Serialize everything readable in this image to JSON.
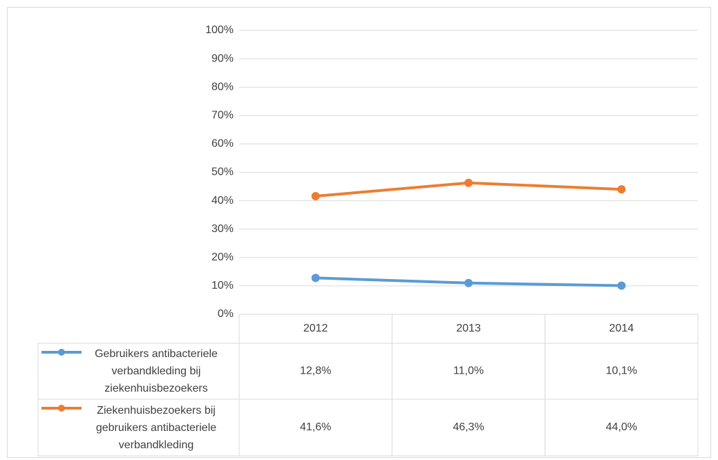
{
  "chart_data": {
    "type": "line",
    "categories": [
      "2012",
      "2013",
      "2014"
    ],
    "series": [
      {
        "name": "Gebruikers antibacteriele verbandkleding bij ziekenhuisbezoekers",
        "color": "#5b9bd5",
        "values": [
          12.8,
          11.0,
          10.1
        ],
        "value_labels": [
          "12,8%",
          "11,0%",
          "10,1%"
        ]
      },
      {
        "name": "Ziekenhuisbezoekers bij gebruikers antibacteriele verbandkleding",
        "color": "#ed7d31",
        "values": [
          41.6,
          46.3,
          44.0
        ],
        "value_labels": [
          "41,6%",
          "46,3%",
          "44,0%"
        ]
      }
    ],
    "ylim": [
      0,
      100
    ],
    "yticks": [
      {
        "value": 0,
        "label": "0%"
      },
      {
        "value": 10,
        "label": "10%"
      },
      {
        "value": 20,
        "label": "20%"
      },
      {
        "value": 30,
        "label": "30%"
      },
      {
        "value": 40,
        "label": "40%"
      },
      {
        "value": 50,
        "label": "50%"
      },
      {
        "value": 60,
        "label": "60%"
      },
      {
        "value": 70,
        "label": "70%"
      },
      {
        "value": 80,
        "label": "80%"
      },
      {
        "value": 90,
        "label": "90%"
      },
      {
        "value": 100,
        "label": "100%"
      }
    ],
    "grid": true
  }
}
